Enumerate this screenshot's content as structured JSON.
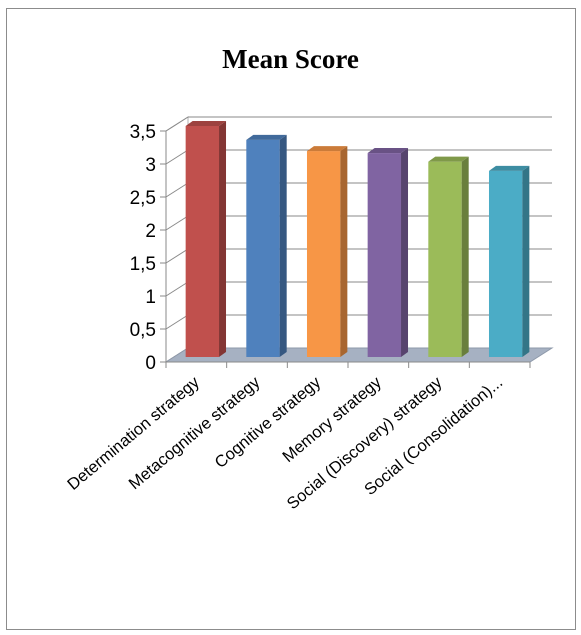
{
  "chart_data": {
    "type": "bar",
    "title": "Mean Score",
    "categories": [
      "Determination strategy",
      "Metacognitive strategy",
      "Cognitive strategy",
      "Memory strategy",
      "Social (Discovery) strategy",
      "Social (Consolidation)..."
    ],
    "values": [
      3.5,
      3.29,
      3.12,
      3.09,
      2.96,
      2.82
    ],
    "colors": [
      "#c0504d",
      "#4f81bd",
      "#f79646",
      "#8064a2",
      "#9bbb59",
      "#4bacc6"
    ],
    "ylim": [
      0,
      3.5
    ],
    "yticks": [
      "0",
      "0,5",
      "1",
      "1,5",
      "2",
      "2,5",
      "3",
      "3,5"
    ],
    "xlabel": "",
    "ylabel": "",
    "grid": true,
    "legend": "none",
    "style": "3d-column"
  }
}
